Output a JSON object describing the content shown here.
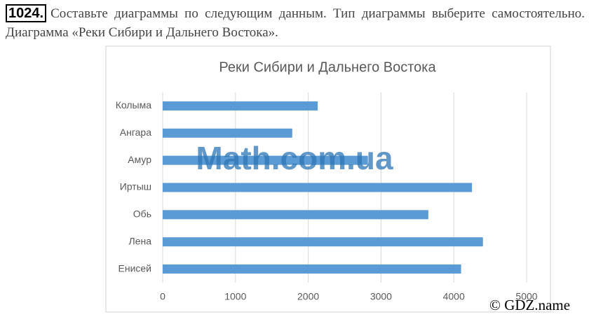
{
  "task": {
    "number": "1024.",
    "text": "Составьте диаграммы по следующим данным. Тип диаграммы выберите самостоятельно. Диаграмма «Реки Сибири и Дальнего Востока»."
  },
  "watermarks": [
    "Math.com.ua",
    "© GDZ.name"
  ],
  "chart_data": {
    "type": "hbar",
    "title": "Реки Сибири и Дальнего Востока",
    "categories": [
      "Колыма",
      "Ангара",
      "Амур",
      "Иртыш",
      "Обь",
      "Лена",
      "Енисей"
    ],
    "values": [
      2130,
      1780,
      2820,
      4250,
      3650,
      4400,
      4100
    ],
    "color": "#5b9bd5",
    "xlim": [
      0,
      5000
    ],
    "xticks": [
      0,
      1000,
      2000,
      3000,
      4000,
      5000
    ],
    "grid": true
  }
}
